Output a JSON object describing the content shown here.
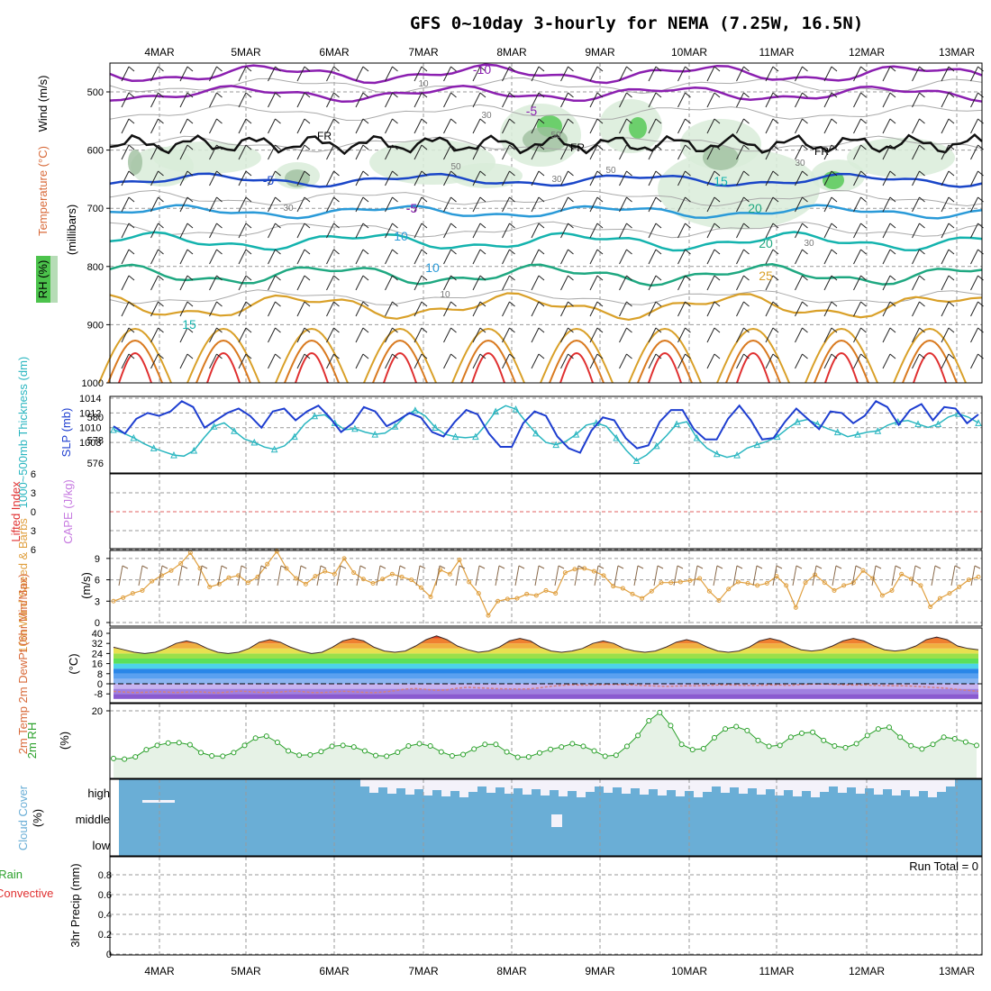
{
  "title": "GFS 0~10day 3-hourly for NEMA (7.25W, 16.5N)",
  "dates": [
    "4MAR",
    "5MAR",
    "6MAR",
    "7MAR",
    "8MAR",
    "9MAR",
    "10MAR",
    "11MAR",
    "12MAR",
    "13MAR"
  ],
  "colors": {
    "purple": "#8b1fb0",
    "blue": "#1a46c8",
    "lightblue": "#2a9ad8",
    "teal": "#14b3ae",
    "green": "#1fa881",
    "orange": "#d9a028",
    "darkorange": "#d97a20",
    "red": "#e03030",
    "thickness": "#2ab6c0",
    "slp": "#1e3ed0",
    "wind10": "#e0a040",
    "rh": "#2aa02a",
    "cloud": "#6aaed6"
  },
  "chart_data": [
    {
      "type": "contour",
      "panel": "upper-air",
      "ylabel_left_parts": [
        "RH (%)",
        "Temperature (°C)",
        "Wind (m/s)"
      ],
      "ylabel_right": "(millibars)",
      "yticks": [
        500,
        600,
        700,
        800,
        900,
        1000
      ],
      "yaxis_reversed": true,
      "temperature_labels": [
        "-10",
        "-5",
        "-5",
        "-5",
        "10",
        "10",
        "15",
        "15",
        "20",
        "20",
        "25"
      ],
      "freezing_labels": [
        "FR",
        "FR",
        "FR"
      ],
      "rh_labels": [
        "10",
        "30",
        "50",
        "30",
        "50",
        "30",
        "10",
        "30",
        "50",
        "30"
      ]
    },
    {
      "type": "line",
      "panel": "thickness-slp",
      "ylabel_left": "1000~500mb Thickness (dm)",
      "ylabel_right": "SLP (mb)",
      "yticks_left": [
        576,
        578,
        580
      ],
      "yticks_right": [
        1008,
        1010,
        1012,
        1014
      ],
      "series": [
        {
          "name": "SLP",
          "values": [
            1010.2,
            1009.2,
            1011.2,
            1012.0,
            1011.6,
            1012.2,
            1013.6,
            1012.8,
            1010.0,
            1011.0,
            1012.0,
            1012.6,
            1011.6,
            1010.0,
            1012.2,
            1012.6,
            1011.0,
            1012.2,
            1013.0,
            1011.4,
            1009.4,
            1010.6,
            1012.8,
            1012.2,
            1010.2,
            1011.0,
            1012.0,
            1011.4,
            1009.4,
            1008.8,
            1010.8,
            1012.4,
            1011.8,
            1009.2,
            1007.4,
            1007.4,
            1010.6,
            1012.2,
            1011.6,
            1008.8,
            1007.2,
            1006.6,
            1009.6,
            1011.4,
            1011.0,
            1008.6,
            1007.2,
            1007.6,
            1010.8,
            1012.4,
            1012.4,
            1009.8,
            1008.4,
            1008.4,
            1011.2,
            1013.0,
            1011.0,
            1008.4,
            1008.6,
            1010.8,
            1012.6,
            1011.2,
            1009.8,
            1012.2,
            1012.0,
            1010.6,
            1011.6,
            1013.6,
            1012.8,
            1010.4,
            1012.4,
            1013.2,
            1011.0,
            1012.8,
            1012.6,
            1010.6,
            1011.8
          ]
        },
        {
          "name": "Thickness",
          "values": [
            578.9,
            578.6,
            578.2,
            577.7,
            577.3,
            577.0,
            576.7,
            576.6,
            577.1,
            578.2,
            579.2,
            579.5,
            578.8,
            578.1,
            577.8,
            577.4,
            577.2,
            577.5,
            578.3,
            579.4,
            580.1,
            580.2,
            579.5,
            578.9,
            579.0,
            578.7,
            578.5,
            578.6,
            579.2,
            580.1,
            580.6,
            580.1,
            579.1,
            578.5,
            578.3,
            578.2,
            578.3,
            579.3,
            580.5,
            581.0,
            580.7,
            579.6,
            578.6,
            577.8,
            577.6,
            577.9,
            578.5,
            579.3,
            579.5,
            579.2,
            578.2,
            577.1,
            576.2,
            576.7,
            577.5,
            578.4,
            579.4,
            579.6,
            578.2,
            577.3,
            576.8,
            576.5,
            576.7,
            577.3,
            577.6,
            577.9,
            578.3,
            579.0,
            579.6,
            579.8,
            579.4,
            579.0,
            578.7,
            578.3,
            578.5,
            578.7,
            578.8,
            579.3,
            579.6,
            579.7,
            579.4,
            579.1,
            579.4,
            580.0,
            580.3,
            580.0,
            579.5
          ]
        }
      ]
    },
    {
      "type": "line",
      "panel": "lifted-index-cape",
      "ylabel_left": "Lifted Index",
      "ylabel_right": "CAPE (J/kg)",
      "yticks": [
        -6,
        -3,
        0,
        3,
        6
      ]
    },
    {
      "type": "line",
      "panel": "wind10m",
      "ylabel_left": "10m Wind Speed & Barbs",
      "ylabel_right": "(m/s)",
      "yticks": [
        0,
        3,
        6,
        9
      ],
      "ylim": [
        0,
        10.5
      ],
      "series": [
        {
          "name": "Speed",
          "values": [
            3.0,
            3.5,
            4.1,
            4.5,
            5.8,
            6.6,
            7.3,
            8.3,
            9.8,
            7.6,
            5.0,
            5.4,
            6.3,
            6.6,
            5.6,
            6.4,
            8.2,
            10.0,
            7.6,
            6.2,
            5.4,
            6.5,
            7.2,
            6.8,
            9.0,
            7.0,
            6.1,
            5.5,
            6.1,
            6.8,
            6.4,
            6.0,
            4.9,
            3.6,
            7.4,
            6.8,
            8.8,
            5.7,
            4.1,
            1.0,
            3.0,
            3.3,
            3.4,
            4.0,
            3.8,
            4.5,
            4.1,
            7.0,
            7.5,
            7.6,
            7.2,
            6.6,
            5.1,
            4.8,
            4.0,
            3.4,
            4.4,
            5.6,
            5.6,
            5.7,
            5.9,
            6.2,
            4.4,
            3.1,
            4.7,
            5.7,
            5.5,
            5.2,
            5.5,
            6.5,
            5.2,
            2.1,
            5.6,
            6.7,
            5.6,
            4.5,
            5.2,
            5.6,
            7.3,
            6.2,
            3.8,
            4.5,
            6.8,
            6.1,
            5.2,
            2.2,
            3.4,
            4.1,
            5.0,
            6.0,
            6.4
          ]
        }
      ]
    },
    {
      "type": "area",
      "panel": "temperature",
      "ylabel_left": "2m Temp 2m DewPt (6hr Min/Max)",
      "ylabel_right": "(°C)",
      "yticks": [
        -8,
        0,
        8,
        16,
        24,
        32,
        40
      ],
      "ylim": [
        -12,
        42
      ],
      "series": [
        {
          "name": "Temp",
          "values": [
            29,
            27,
            25,
            24,
            25,
            28,
            32,
            34,
            32,
            28,
            25,
            24,
            25,
            28,
            33,
            35,
            33,
            29,
            26,
            24,
            25,
            29,
            34,
            36,
            34,
            29,
            26,
            25,
            26,
            30,
            35,
            38,
            35,
            30,
            27,
            25,
            26,
            29,
            34,
            36,
            34,
            29,
            26,
            25,
            26,
            28,
            32,
            34,
            32,
            28,
            26,
            25,
            26,
            29,
            33,
            35,
            33,
            29,
            26,
            25,
            26,
            29,
            34,
            36,
            34,
            30,
            27,
            26,
            27,
            30,
            34,
            36,
            34,
            30,
            27,
            26,
            27,
            30,
            35,
            37,
            35,
            30,
            28,
            27
          ]
        },
        {
          "name": "DewPt",
          "values": [
            -6,
            -6.5,
            -7,
            -6.8,
            -6.2,
            -6.5,
            -7,
            -6.6,
            -6.2,
            -6.8,
            -7.2,
            -6.5,
            -5.8,
            -6.2,
            -6.8,
            -7,
            -6.5,
            -5.8,
            -6.1,
            -6.9,
            -7,
            -6.4,
            -5.9,
            -6.3,
            -6.8,
            -7.1,
            -6.4,
            -5.5,
            -4.2,
            -3.8,
            -4.5,
            -5.2,
            -4.8,
            -3.5,
            -2.8,
            -3.2,
            -3.6,
            -3.9,
            -4.1,
            -4.2,
            -4.0,
            -3.1,
            -1.9,
            -1.2,
            -0.8,
            -1.1,
            -1.0,
            -0.7,
            -0.5,
            -0.8,
            -1.0,
            -1.4,
            -1.7,
            -2.0,
            -1.8,
            -1.6,
            -1.5,
            -1.2,
            -1.0,
            -0.9,
            -1.1,
            -1.3,
            -1.2,
            -0.9,
            -1.0,
            -1.2,
            -0.6,
            -0.3,
            -0.2,
            -0.5,
            -0.8,
            -1.0,
            -0.9,
            -1.2,
            -1.4,
            -1.5,
            -1.6,
            -2.0,
            -2.5,
            -3.0,
            -3.6,
            -4.5,
            -5.2,
            -6.0
          ]
        }
      ]
    },
    {
      "type": "area",
      "panel": "rh2m",
      "ylabel_left": "2m RH",
      "ylabel_right": "(%)",
      "yticks": [
        20
      ],
      "ylim": [
        0,
        22
      ],
      "series": [
        {
          "name": "2m RH",
          "values": [
            5.5,
            5.3,
            6.0,
            8.2,
            9.5,
            10.2,
            10.3,
            9.7,
            7.3,
            6.3,
            6.2,
            7.3,
            9.5,
            11.7,
            12.3,
            10.4,
            7.8,
            6.5,
            6.6,
            7.6,
            9.2,
            9.5,
            9.0,
            7.8,
            6.4,
            6.2,
            7.4,
            9.3,
            10.0,
            9.3,
            7.5,
            6.3,
            6.7,
            8.4,
            9.8,
            9.8,
            7.5,
            5.9,
            6.0,
            7.2,
            8.3,
            9.0,
            10.0,
            9.2,
            7.8,
            6.2,
            6.5,
            9.2,
            12.5,
            17.0,
            19.5,
            15.5,
            9.8,
            8.2,
            8.5,
            11.8,
            14.5,
            15.2,
            14.0,
            11.0,
            9.2,
            9.5,
            12.0,
            13.2,
            13.5,
            11.0,
            9.3,
            8.8,
            10.0,
            12.5,
            14.5,
            15.0,
            12.0,
            9.4,
            8.4,
            9.8,
            12.0,
            11.5,
            10.5,
            9.5
          ]
        }
      ]
    },
    {
      "type": "heatmap",
      "panel": "cloud-cover",
      "ylabel_left": "Cloud Cover",
      "ylabel_right": "(%)",
      "levels": [
        "high",
        "middle",
        "low"
      ]
    },
    {
      "type": "bar",
      "panel": "precip",
      "ylabel_left_parts": [
        "Total / Rain",
        "Convective"
      ],
      "ylabel_right": "3hr Precip (mm)",
      "yticks": [
        0,
        0.2,
        0.4,
        0.6,
        0.8
      ],
      "ylim": [
        0,
        1
      ],
      "run_total": "Run Total = 0",
      "values": []
    }
  ]
}
